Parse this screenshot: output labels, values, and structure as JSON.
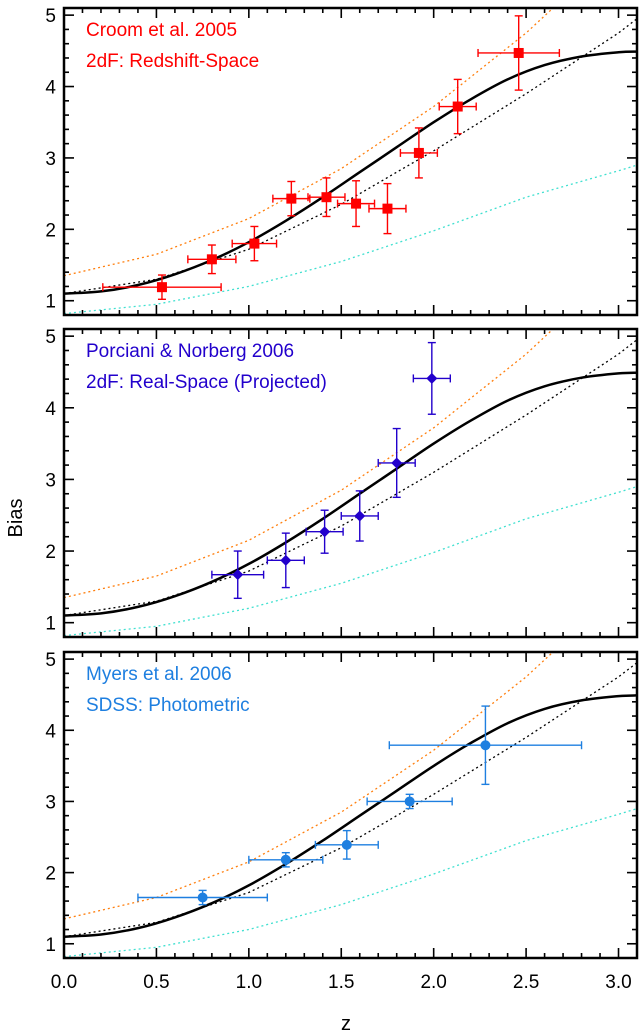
{
  "chart_data": {
    "type": "scatter",
    "xlabel": "z",
    "ylabel": "Bias",
    "xlim": [
      0,
      3.1
    ],
    "ylim": [
      0.8,
      5.1
    ],
    "x_ticks": [
      "0.0",
      "0.5",
      "1.0",
      "1.5",
      "2.0",
      "2.5",
      "3.0"
    ],
    "y_ticks": [
      "1",
      "2",
      "3",
      "4",
      "5"
    ],
    "model_curve": {
      "x": [
        0,
        0.2,
        0.4,
        0.6,
        0.8,
        1.0,
        1.2,
        1.4,
        1.6,
        1.8,
        2.0,
        2.2,
        2.4,
        2.6,
        2.8,
        3.0,
        3.1
      ],
      "y": [
        1.1,
        1.13,
        1.22,
        1.37,
        1.57,
        1.82,
        2.12,
        2.45,
        2.8,
        3.15,
        3.5,
        3.82,
        4.1,
        4.3,
        4.42,
        4.48,
        4.49
      ]
    },
    "reference_curves": [
      {
        "color": "#ff7f0e",
        "x": [
          0,
          0.5,
          1.0,
          1.5,
          2.0,
          2.5,
          3.0
        ],
        "y": [
          1.35,
          1.65,
          2.15,
          2.85,
          3.72,
          4.75,
          5.95
        ]
      },
      {
        "color": "#000000",
        "x": [
          0,
          0.5,
          1.0,
          1.5,
          2.0,
          2.5,
          3.0,
          3.1
        ],
        "y": [
          1.1,
          1.3,
          1.72,
          2.35,
          3.1,
          3.9,
          4.75,
          4.95
        ]
      },
      {
        "color": "#40e0d0",
        "x": [
          0,
          0.5,
          1.0,
          1.5,
          2.0,
          2.5,
          3.0,
          3.1
        ],
        "y": [
          0.82,
          0.95,
          1.2,
          1.55,
          1.98,
          2.45,
          2.82,
          2.9
        ]
      }
    ],
    "panels": [
      {
        "annotations": [
          "Croom et al. 2005",
          "2dF: Redshift-Space"
        ],
        "color": "#ff0000",
        "marker": "square",
        "points": [
          {
            "x": 0.53,
            "y": 1.19,
            "xerr": 0.32,
            "yerr": 0.17
          },
          {
            "x": 0.8,
            "y": 1.58,
            "xerr": 0.13,
            "yerr": 0.2
          },
          {
            "x": 1.03,
            "y": 1.8,
            "xerr": 0.12,
            "yerr": 0.24
          },
          {
            "x": 1.23,
            "y": 2.43,
            "xerr": 0.1,
            "yerr": 0.24
          },
          {
            "x": 1.42,
            "y": 2.45,
            "xerr": 0.1,
            "yerr": 0.27
          },
          {
            "x": 1.58,
            "y": 2.36,
            "xerr": 0.1,
            "yerr": 0.32
          },
          {
            "x": 1.75,
            "y": 2.29,
            "xerr": 0.1,
            "yerr": 0.35
          },
          {
            "x": 1.92,
            "y": 3.07,
            "xerr": 0.1,
            "yerr": 0.35
          },
          {
            "x": 2.13,
            "y": 3.72,
            "xerr": 0.1,
            "yerr": 0.38
          },
          {
            "x": 2.46,
            "y": 4.47,
            "xerr": 0.22,
            "yerr": 0.52
          }
        ]
      },
      {
        "annotations": [
          "Porciani & Norberg 2006",
          "2dF: Real-Space (Projected)"
        ],
        "color": "#2200cc",
        "marker": "diamond",
        "points": [
          {
            "x": 0.94,
            "y": 1.67,
            "xerr": 0.14,
            "yerr": 0.33
          },
          {
            "x": 1.2,
            "y": 1.87,
            "xerr": 0.1,
            "yerr": 0.38
          },
          {
            "x": 1.41,
            "y": 2.27,
            "xerr": 0.1,
            "yerr": 0.3
          },
          {
            "x": 1.6,
            "y": 2.49,
            "xerr": 0.1,
            "yerr": 0.35
          },
          {
            "x": 1.8,
            "y": 3.23,
            "xerr": 0.1,
            "yerr": 0.48
          },
          {
            "x": 1.99,
            "y": 4.41,
            "xerr": 0.1,
            "yerr": 0.5
          }
        ]
      },
      {
        "annotations": [
          "Myers et al. 2006",
          "SDSS: Photometric"
        ],
        "color": "#1e7fe0",
        "marker": "circle",
        "points": [
          {
            "x": 0.75,
            "y": 1.65,
            "xerr": 0.35,
            "yerr": 0.1
          },
          {
            "x": 1.2,
            "y": 2.18,
            "xerr": 0.2,
            "yerr": 0.1
          },
          {
            "x": 1.53,
            "y": 2.39,
            "xerr": 0.17,
            "yerr": 0.2
          },
          {
            "x": 1.87,
            "y": 3.0,
            "xerr": 0.23,
            "yerr": 0.1
          },
          {
            "x": 2.28,
            "y": 3.79,
            "xerr": 0.52,
            "yerr": 0.55
          }
        ]
      }
    ]
  }
}
